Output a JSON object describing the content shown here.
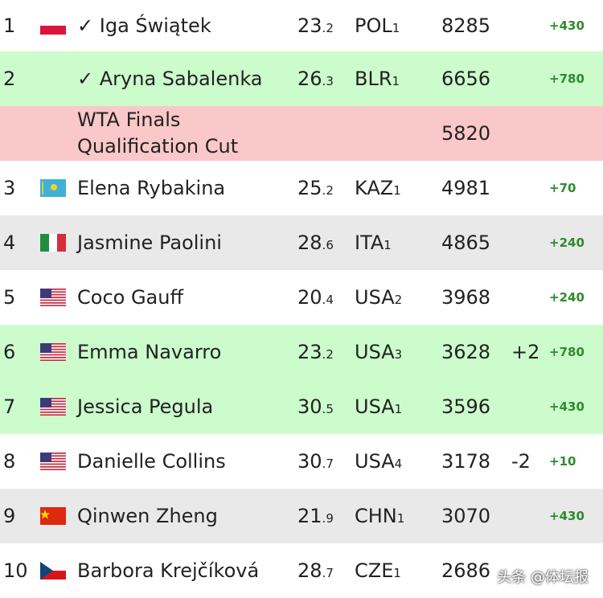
{
  "rows": [
    {
      "shade": "white",
      "rank": "1",
      "check": "✓",
      "name": "Iga Świątek",
      "age": "23",
      "age_frac": ".2",
      "country": "POL",
      "country_rank": "1",
      "points": 8285,
      "gain": "+430"
    },
    {
      "shade": "green",
      "rank": "2",
      "check": "✓",
      "name": "Aryna Sabalenka",
      "age": "26",
      "age_frac": ".3",
      "country": "BLR",
      "country_rank": "1",
      "points": 6656,
      "gain": "+780"
    },
    {
      "shade": "pink",
      "label": [
        "WTA Finals",
        "Qualification Cut"
      ],
      "points": 5820
    },
    {
      "shade": "white",
      "rank": "3",
      "name": "Elena Rybakina",
      "age": "25",
      "age_frac": ".2",
      "country": "KAZ",
      "country_rank": "1",
      "points": 4981,
      "gain": "+70"
    },
    {
      "shade": "gray",
      "rank": "4",
      "name": "Jasmine Paolini",
      "age": "28",
      "age_frac": ".6",
      "country": "ITA",
      "country_rank": "1",
      "points": 4865,
      "gain": "+240"
    },
    {
      "shade": "white",
      "rank": "5",
      "name": "Coco Gauff",
      "age": "20",
      "age_frac": ".4",
      "country": "USA",
      "country_rank": "2",
      "points": 3968,
      "gain": "+240"
    },
    {
      "shade": "green",
      "rank": "6",
      "name": "Emma Navarro",
      "age": "23",
      "age_frac": ".2",
      "country": "USA",
      "country_rank": "3",
      "points": 3628,
      "move": "+2",
      "gain": "+780"
    },
    {
      "shade": "green",
      "rank": "7",
      "name": "Jessica Pegula",
      "age": "30",
      "age_frac": ".5",
      "country": "USA",
      "country_rank": "1",
      "points": 3596,
      "gain": "+430"
    },
    {
      "shade": "white",
      "rank": "8",
      "name": "Danielle Collins",
      "age": "30",
      "age_frac": ".7",
      "country": "USA",
      "country_rank": "4",
      "points": 3178,
      "move": "-2",
      "gain": "+10"
    },
    {
      "shade": "gray",
      "rank": "9",
      "name": "Qinwen Zheng",
      "age": "21",
      "age_frac": ".9",
      "country": "CHN",
      "country_rank": "1",
      "points": 3070,
      "gain": "+430"
    },
    {
      "shade": "white",
      "rank": "10",
      "name": "Barbora Krejčíková",
      "age": "28",
      "age_frac": ".7",
      "country": "CZE",
      "country_rank": "1",
      "points": 2686
    }
  ],
  "watermark": "头条 @体坛报"
}
